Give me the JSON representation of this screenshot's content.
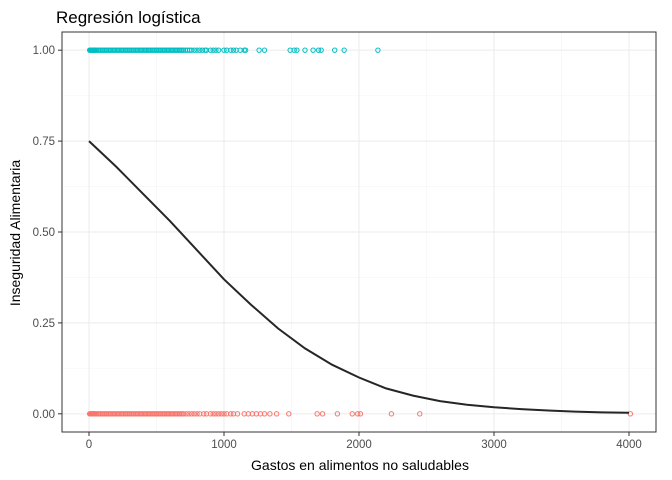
{
  "chart_data": {
    "type": "scatter",
    "title": "Regresión logística",
    "xlabel": "Gastos en alimentos no saludables",
    "ylabel": "Inseguridad Alimentaria",
    "xlim": [
      -200,
      4200
    ],
    "ylim": [
      -0.05,
      1.05
    ],
    "x_ticks": [
      0,
      1000,
      2000,
      3000,
      4000
    ],
    "x_tick_labels": [
      "0",
      "1000",
      "2000",
      "3000",
      "4000"
    ],
    "y_ticks": [
      0,
      0.25,
      0.5,
      0.75,
      1
    ],
    "y_tick_labels": [
      "0.00",
      "0.25",
      "0.50",
      "0.75",
      "1.00"
    ],
    "grid": true,
    "series": [
      {
        "type": "scatter",
        "color": "#00BFC4",
        "y": 1,
        "x": [
          5,
          10,
          15,
          20,
          25,
          30,
          35,
          40,
          45,
          50,
          60,
          70,
          80,
          90,
          100,
          110,
          120,
          130,
          140,
          150,
          160,
          170,
          180,
          190,
          200,
          210,
          220,
          230,
          240,
          250,
          260,
          270,
          280,
          290,
          300,
          310,
          320,
          330,
          340,
          350,
          360,
          370,
          380,
          390,
          400,
          410,
          420,
          430,
          440,
          450,
          460,
          470,
          480,
          490,
          500,
          510,
          520,
          530,
          540,
          550,
          560,
          570,
          580,
          590,
          600,
          610,
          620,
          630,
          640,
          650,
          660,
          670,
          680,
          690,
          700,
          715,
          730,
          745,
          760,
          780,
          800,
          820,
          840,
          860,
          870,
          900,
          920,
          940,
          960,
          1000,
          1020,
          1050,
          1070,
          1090,
          1120,
          1150,
          1160,
          1260,
          1300,
          1490,
          1520,
          1540,
          1600,
          1660,
          1700,
          1720,
          1820,
          1890,
          2140
        ]
      },
      {
        "type": "scatter",
        "color": "#F8766D",
        "y": 0,
        "x": [
          5,
          10,
          15,
          20,
          25,
          30,
          35,
          40,
          45,
          50,
          60,
          70,
          80,
          90,
          100,
          110,
          120,
          130,
          140,
          150,
          160,
          170,
          180,
          190,
          200,
          210,
          220,
          230,
          240,
          250,
          260,
          270,
          280,
          290,
          300,
          310,
          320,
          330,
          340,
          350,
          360,
          370,
          380,
          390,
          400,
          410,
          420,
          430,
          440,
          450,
          460,
          470,
          480,
          490,
          500,
          510,
          520,
          530,
          540,
          550,
          560,
          570,
          580,
          590,
          600,
          610,
          620,
          630,
          640,
          650,
          660,
          670,
          680,
          690,
          700,
          720,
          740,
          760,
          780,
          800,
          820,
          850,
          870,
          900,
          920,
          940,
          960,
          980,
          1000,
          1020,
          1050,
          1070,
          1100,
          1150,
          1180,
          1210,
          1240,
          1270,
          1300,
          1340,
          1390,
          1480,
          1690,
          1730,
          1840,
          1950,
          1990,
          2010,
          2240,
          2450,
          4010
        ]
      },
      {
        "type": "line",
        "color": "#262626",
        "x": [
          0,
          200,
          400,
          600,
          800,
          1000,
          1200,
          1400,
          1600,
          1800,
          2000,
          2200,
          2400,
          2600,
          2800,
          3000,
          3200,
          3400,
          3600,
          3800,
          4000
        ],
        "y": [
          0.75,
          0.68,
          0.605,
          0.53,
          0.45,
          0.37,
          0.3,
          0.235,
          0.18,
          0.135,
          0.1,
          0.07,
          0.05,
          0.035,
          0.025,
          0.018,
          0.013,
          0.009,
          0.006,
          0.004,
          0.003
        ]
      }
    ]
  }
}
